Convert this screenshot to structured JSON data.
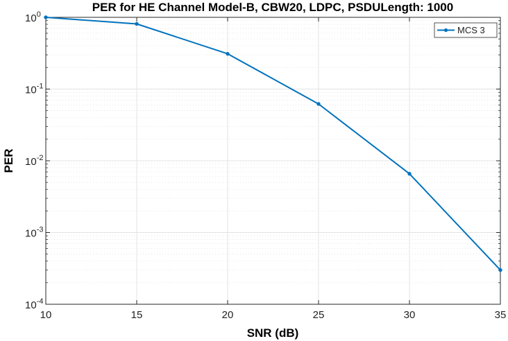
{
  "chart_data": {
    "type": "line",
    "title": "PER for HE Channel Model-B, CBW20, LDPC, PSDULength: 1000",
    "xlabel": "SNR (dB)",
    "ylabel": "PER",
    "xlim": [
      10,
      35
    ],
    "ylim": [
      0.0001,
      1
    ],
    "yscale": "log",
    "grid": true,
    "minor_grid": true,
    "x_ticks": [
      "10",
      "15",
      "20",
      "25",
      "30",
      "35"
    ],
    "y_ticks": [
      {
        "base": "10",
        "exp": "-4"
      },
      {
        "base": "10",
        "exp": "-3"
      },
      {
        "base": "10",
        "exp": "-2"
      },
      {
        "base": "10",
        "exp": "-1"
      },
      {
        "base": "10",
        "exp": "0"
      }
    ],
    "legend_position": "top-right",
    "series": [
      {
        "name": "MCS 3",
        "color": "#0072bd",
        "marker": "dot",
        "x": [
          10,
          15,
          20,
          25,
          30,
          35
        ],
        "y": [
          1.0,
          0.81,
          0.31,
          0.062,
          0.0066,
          0.0003
        ]
      }
    ]
  }
}
